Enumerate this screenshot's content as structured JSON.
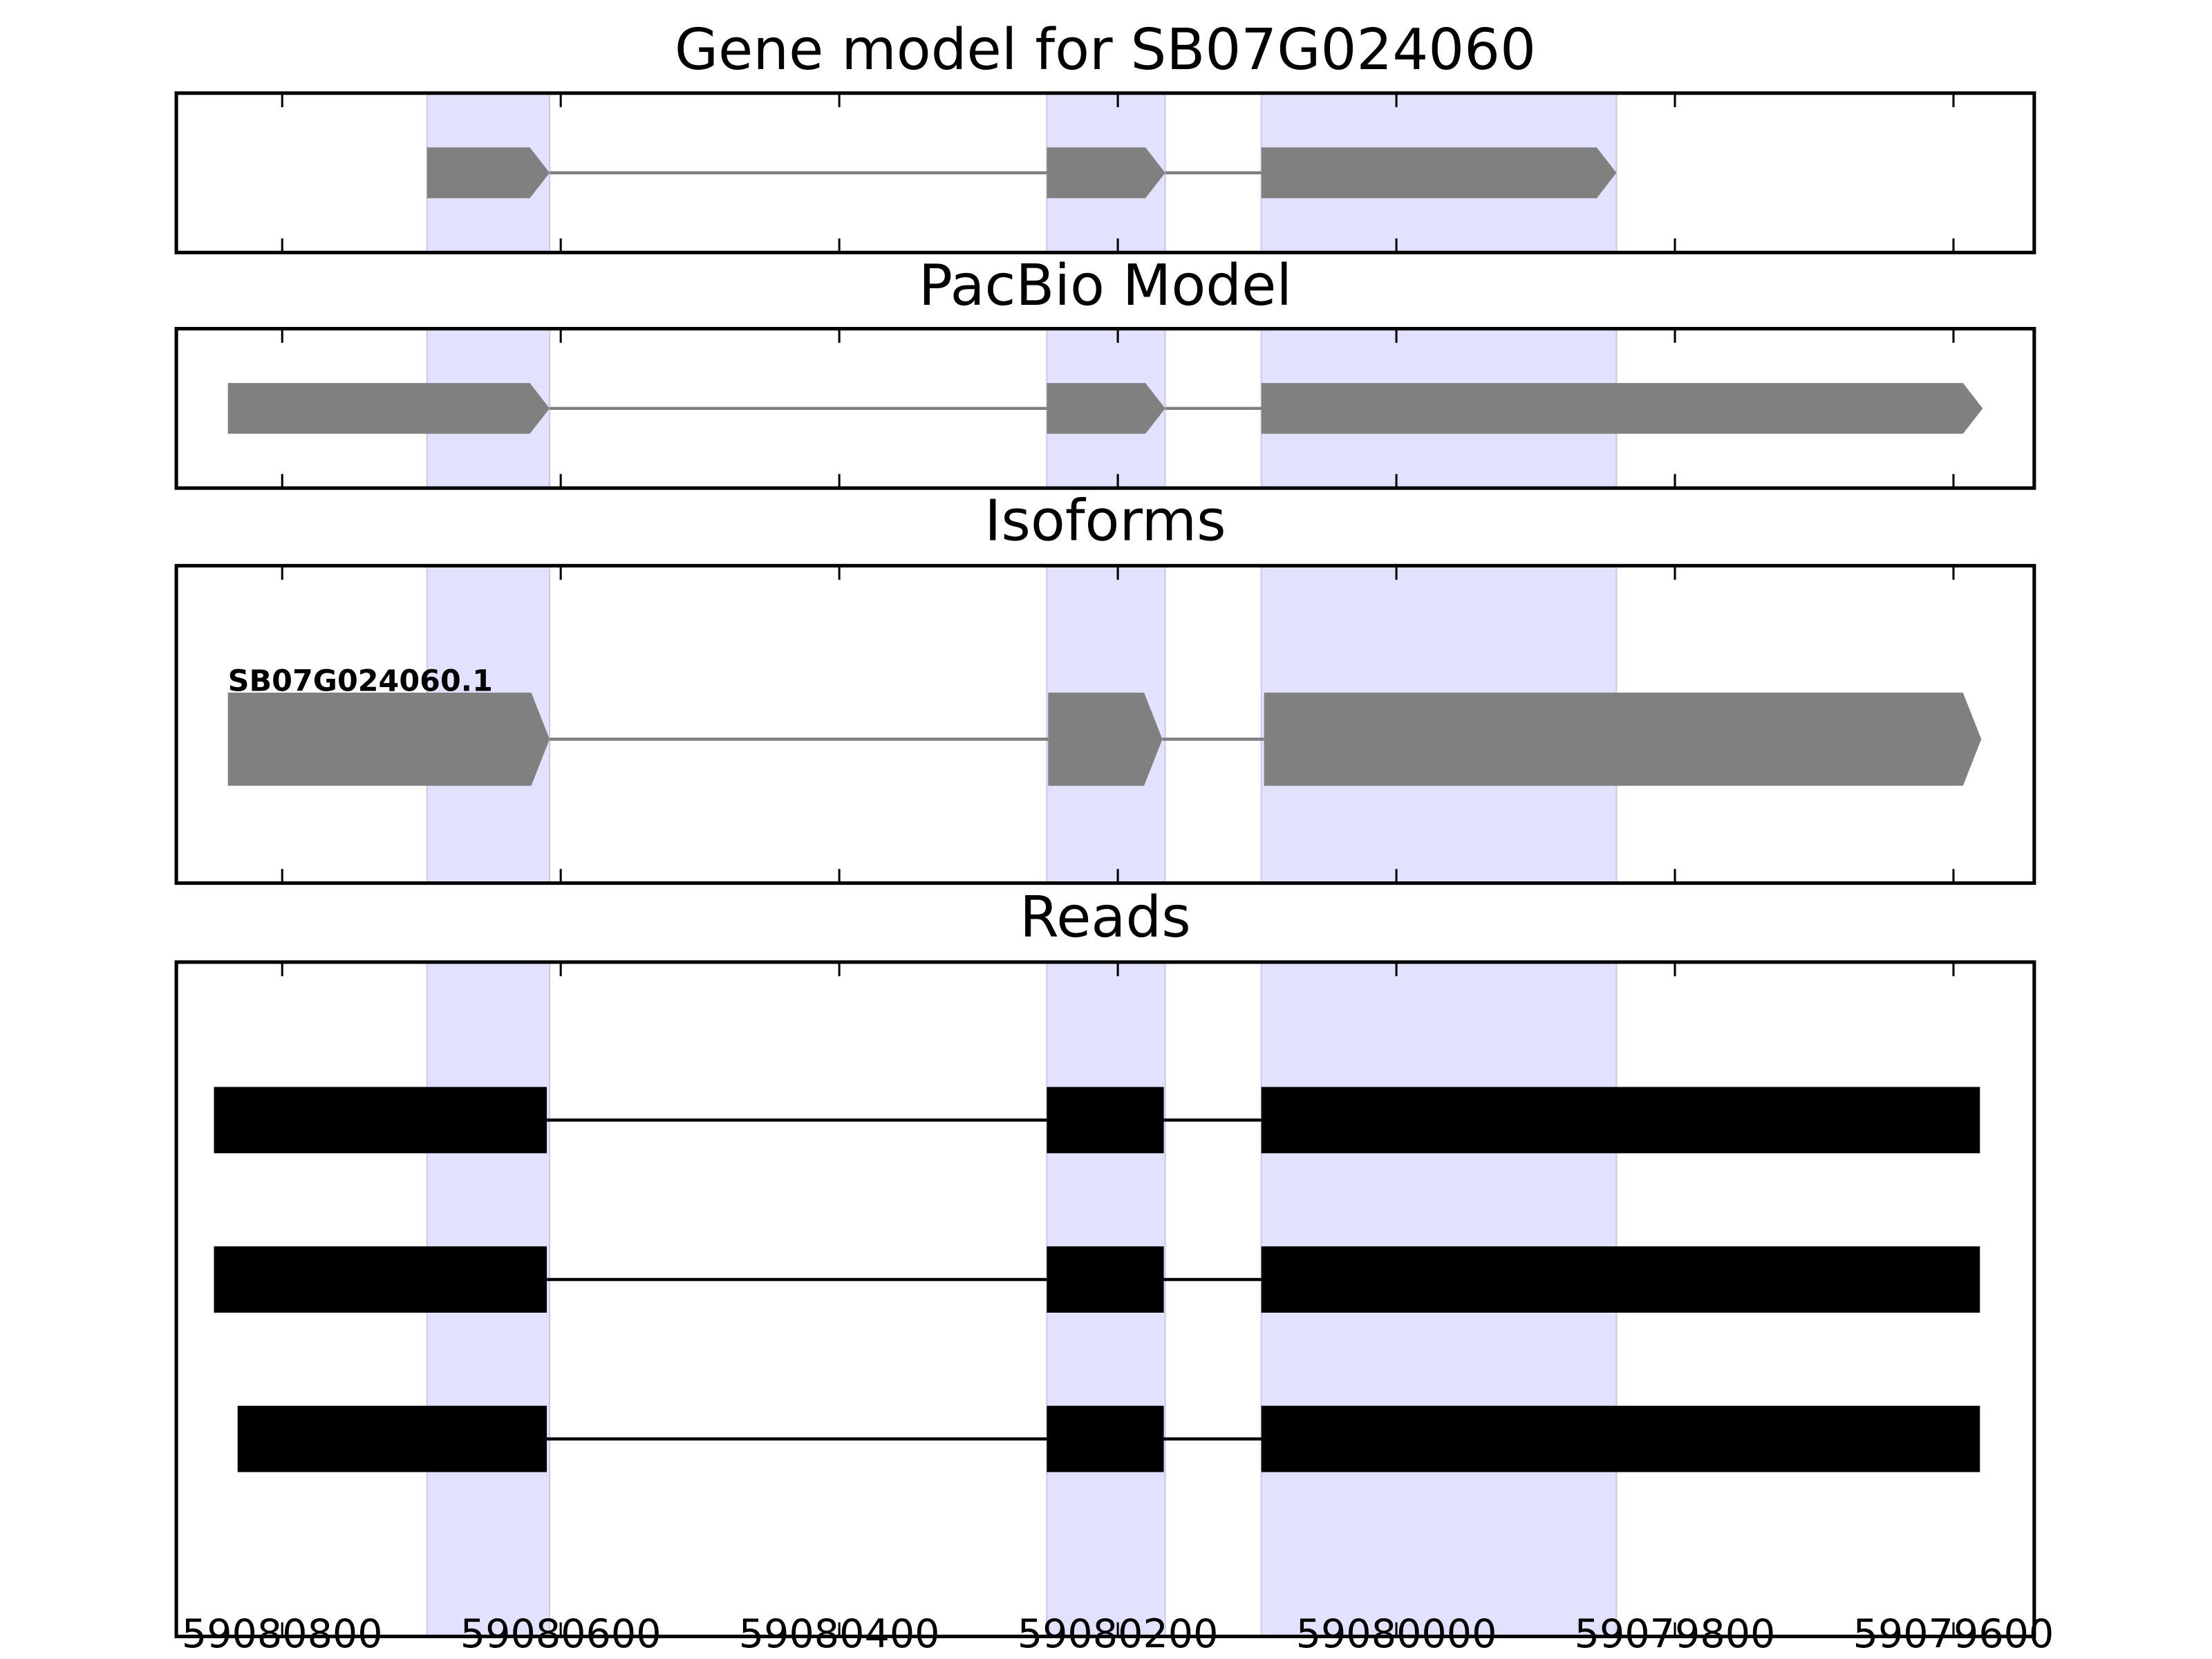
{
  "chart_data": [
    {
      "type": "gene-model",
      "title": "Gene model for SB07G024060",
      "color": "#808080",
      "exons": [
        [
          59080696,
          59080608
        ],
        [
          59080251,
          59080166
        ],
        [
          59080097,
          59079842
        ]
      ],
      "xlim": [
        59080876,
        59079542
      ],
      "xticks": [
        59080800,
        59080600,
        59080400,
        59080200,
        59080000,
        59079800,
        59079600
      ]
    },
    {
      "type": "gene-model",
      "title": "PacBio Model",
      "color": "#808080",
      "exons": [
        [
          59080839,
          59080608
        ],
        [
          59080251,
          59080166
        ],
        [
          59080097,
          59079579
        ]
      ],
      "xlim": [
        59080876,
        59079542
      ],
      "xticks": [
        59080800,
        59080600,
        59080400,
        59080200,
        59080000,
        59079800,
        59079600
      ]
    },
    {
      "type": "isoforms",
      "title": "Isoforms",
      "color": "#808080",
      "isoform": "SB07G024060.1",
      "exons": [
        [
          59080839,
          59080608
        ],
        [
          59080250,
          59080168
        ],
        [
          59080095,
          59079580
        ]
      ],
      "xlim": [
        59080876,
        59079542
      ],
      "xticks": [
        59080800,
        59080600,
        59080400,
        59080200,
        59080000,
        59079800,
        59079600
      ]
    },
    {
      "type": "reads",
      "title": "Reads",
      "color": "#000000",
      "reads": [
        [
          [
            59080849,
            59080610
          ],
          [
            59080251,
            59080167
          ],
          [
            59080097,
            59079581
          ]
        ],
        [
          [
            59080849,
            59080610
          ],
          [
            59080251,
            59080167
          ],
          [
            59080097,
            59079581
          ]
        ],
        [
          [
            59080832,
            59080610
          ],
          [
            59080251,
            59080167
          ],
          [
            59080097,
            59079581
          ]
        ]
      ],
      "xlim": [
        59080876,
        59079542
      ],
      "xticks": [
        59080800,
        59080600,
        59080400,
        59080200,
        59080000,
        59079800,
        59079600
      ]
    }
  ]
}
